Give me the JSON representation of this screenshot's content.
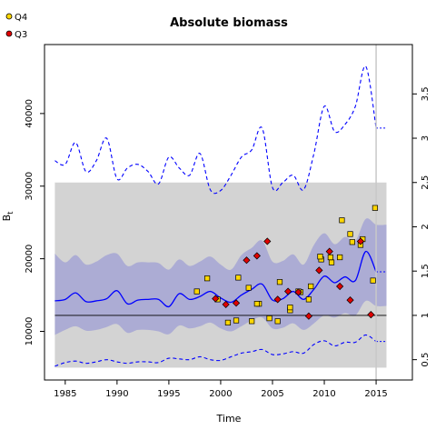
{
  "chart_data": {
    "type": "scatter",
    "title": "Absolute biomass",
    "xlabel": "Time",
    "ylabel": "B",
    "ylabel_subscript": "t",
    "xlim": [
      1983,
      2018.5
    ],
    "ylim": [
      3300,
      49500
    ],
    "x_ticks": [
      1985,
      1990,
      1995,
      2000,
      2005,
      2010,
      2015
    ],
    "y_ticks": [
      10000,
      20000,
      30000,
      40000
    ],
    "y_tick_labels": [
      "10000",
      "20000",
      "30000",
      "40000"
    ],
    "right_axis": {
      "ticks": [
        0.5,
        1,
        1.5,
        2,
        2.5,
        3,
        3.5
      ],
      "tick_labels": [
        "0.5",
        "1",
        "1.5",
        "2",
        "2.5",
        "3",
        "3.5"
      ],
      "reference_value": 12200
    },
    "legend": {
      "placement": "top-left outside",
      "items": [
        {
          "label": "Q4",
          "color": "#ffd700"
        },
        {
          "label": "Q3",
          "color": "#e00000"
        }
      ]
    },
    "gray_region": {
      "x": [
        1984,
        2016
      ],
      "y": [
        5000,
        30500
      ],
      "color": "#d3d3d3"
    },
    "vertical_line_x": 2015,
    "horizontal_line_y": 12200,
    "colors": {
      "line": "#0000ff",
      "band": "#9b9bd4",
      "marker_q4": "#ffd700",
      "marker_q3": "#e00000",
      "vline": "#c8c8c8"
    },
    "series": [
      {
        "name": "median",
        "style": "solid",
        "x": [
          1984,
          1985,
          1986,
          1987,
          1988,
          1989,
          1990,
          1991,
          1992,
          1993,
          1994,
          1995,
          1996,
          1997,
          1998,
          1999,
          2000,
          2001,
          2002,
          2003,
          2004,
          2005,
          2006,
          2007,
          2008,
          2009,
          2010,
          2011,
          2012,
          2013,
          2014,
          2015
        ],
        "y": [
          14200,
          14400,
          15300,
          14100,
          14200,
          14500,
          15600,
          13800,
          14300,
          14400,
          14400,
          13400,
          15200,
          14400,
          14800,
          15500,
          14600,
          14000,
          15000,
          15800,
          16500,
          14300,
          14500,
          15500,
          14400,
          15800,
          17600,
          16700,
          17500,
          17000,
          21000,
          18200
        ]
      },
      {
        "name": "upper",
        "style": "dashed",
        "x": [
          1984,
          1985,
          1986,
          1987,
          1988,
          1989,
          1990,
          1991,
          1992,
          1993,
          1994,
          1995,
          1996,
          1997,
          1998,
          1999,
          2000,
          2001,
          2002,
          2003,
          2004,
          2005,
          2006,
          2007,
          2008,
          2009,
          2010,
          2011,
          2012,
          2013,
          2014,
          2015
        ],
        "y": [
          33500,
          33000,
          36000,
          32000,
          33500,
          36600,
          31000,
          32500,
          33000,
          32000,
          30300,
          34000,
          32500,
          31500,
          34500,
          29500,
          29400,
          31500,
          34000,
          35000,
          38000,
          29800,
          30500,
          31500,
          29500,
          34500,
          41000,
          37500,
          38500,
          41000,
          46500,
          38000
        ]
      },
      {
        "name": "lower",
        "style": "dashed",
        "x": [
          1984,
          1985,
          1986,
          1987,
          1988,
          1989,
          1990,
          1991,
          1992,
          1993,
          1994,
          1995,
          1996,
          1997,
          1998,
          1999,
          2000,
          2001,
          2002,
          2003,
          2004,
          2005,
          2006,
          2007,
          2008,
          2009,
          2010,
          2011,
          2012,
          2013,
          2014,
          2015
        ],
        "y": [
          5200,
          5700,
          5900,
          5600,
          5800,
          6100,
          5800,
          5600,
          5800,
          5800,
          5700,
          6300,
          6200,
          6100,
          6500,
          6100,
          6000,
          6500,
          7000,
          7200,
          7500,
          6800,
          6900,
          7200,
          7000,
          8200,
          8700,
          8000,
          8500,
          8500,
          9500,
          8600
        ]
      },
      {
        "name": "band_upper",
        "style": "band",
        "x": [
          1984,
          1985,
          1986,
          1987,
          1988,
          1989,
          1990,
          1991,
          1992,
          1993,
          1994,
          1995,
          1996,
          1997,
          1998,
          1999,
          2000,
          2001,
          2002,
          2003,
          2004,
          2005,
          2006,
          2007,
          2008,
          2009,
          2010,
          2011,
          2012,
          2013,
          2014,
          2015
        ],
        "y": [
          20700,
          19500,
          20500,
          19200,
          19600,
          20500,
          20700,
          19000,
          19500,
          19500,
          19400,
          18500,
          19900,
          19000,
          19600,
          20300,
          19200,
          18500,
          20500,
          21500,
          22500,
          19600,
          19700,
          20600,
          19200,
          21900,
          23500,
          22000,
          23000,
          22500,
          25500,
          24700
        ]
      },
      {
        "name": "band_lower",
        "style": "band",
        "x": [
          1984,
          1985,
          1986,
          1987,
          1988,
          1989,
          1990,
          1991,
          1992,
          1993,
          1994,
          1995,
          1996,
          1997,
          1998,
          1999,
          2000,
          2001,
          2002,
          2003,
          2004,
          2005,
          2006,
          2007,
          2008,
          2009,
          2010,
          2011,
          2012,
          2013,
          2014,
          2015
        ],
        "y": [
          9500,
          10200,
          10700,
          10100,
          10200,
          10600,
          11000,
          9800,
          10200,
          10200,
          10000,
          9600,
          10800,
          10400,
          10700,
          11200,
          10400,
          10000,
          10700,
          11500,
          11900,
          10400,
          10500,
          11100,
          10200,
          11100,
          12200,
          11900,
          12500,
          12200,
          14200,
          13500
        ]
      },
      {
        "name": "Q4",
        "style": "points",
        "x": [
          1998.7,
          1999.7,
          2000.7,
          2001.7,
          2002.7,
          2003.7,
          2004.7,
          2005.7,
          2006.7,
          2007.7,
          2008.7,
          2009.7,
          2010.7,
          2011.7,
          2012.7,
          2013.7,
          2014.7,
          1997.7,
          2001.5,
          2003.0,
          2003.5,
          2005.5,
          2006.7,
          2007.5,
          2008.5,
          2009.6,
          2010.6,
          2011.5,
          2012.5,
          2013.5,
          2014.9
        ],
        "y": [
          17300,
          14400,
          11200,
          17400,
          16000,
          13800,
          11800,
          16800,
          12900,
          15400,
          16200,
          19900,
          19500,
          25300,
          22300,
          22700,
          17000,
          15500,
          11500,
          11400,
          13800,
          11400,
          13300,
          15500,
          14400,
          20300,
          20200,
          20200,
          23400,
          21900,
          27000
        ]
      },
      {
        "name": "Q3",
        "style": "points",
        "x": [
          1999.5,
          2000.5,
          2001.5,
          2002.5,
          2003.5,
          2004.5,
          2005.5,
          2006.5,
          2007.5,
          2008.5,
          2009.5,
          2010.5,
          2011.5,
          2012.5,
          2013.5,
          2014.5
        ],
        "y": [
          14500,
          13700,
          13900,
          19800,
          20400,
          22400,
          14400,
          15500,
          15400,
          12100,
          18400,
          21000,
          16200,
          14300,
          22400,
          12300
        ]
      }
    ]
  }
}
